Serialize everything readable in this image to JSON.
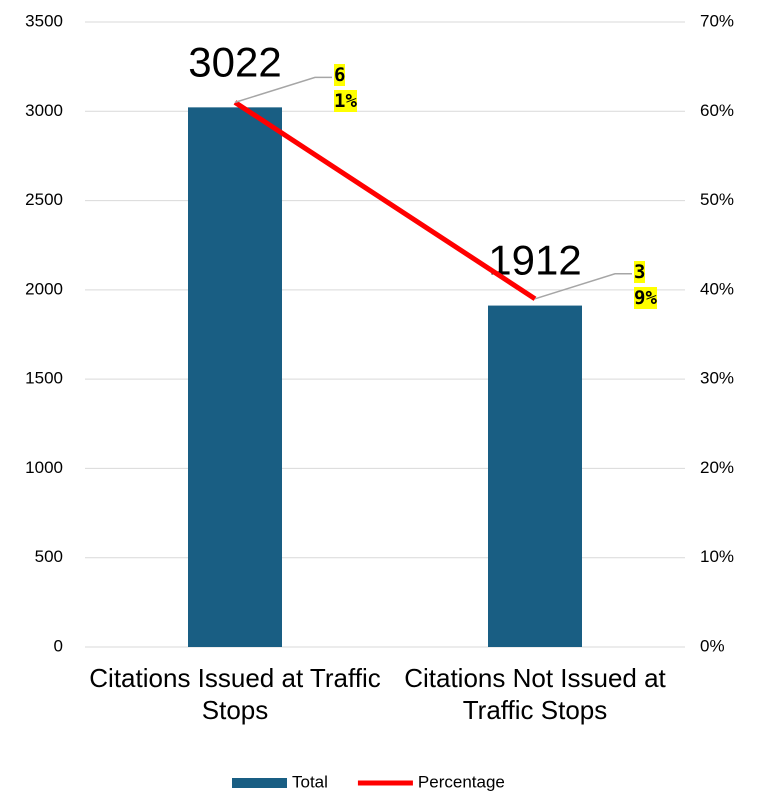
{
  "chart_data": {
    "type": "bar_line",
    "categories": [
      "Citations Issued at Traffic Stops",
      "Citations Not Issued at Traffic Stops"
    ],
    "series": [
      {
        "name": "Total",
        "type": "bar",
        "color": "#195e83",
        "values": [
          3022,
          1912
        ]
      },
      {
        "name": "Percentage",
        "type": "line",
        "axis": "y2",
        "color": "#ff0000",
        "values": [
          61,
          39
        ],
        "value_labels": [
          "61%",
          "39%"
        ]
      }
    ],
    "ylim": [
      0,
      3500
    ],
    "yticks": [
      0,
      500,
      1000,
      1500,
      2000,
      2500,
      3000,
      3500
    ],
    "y2lim": [
      0,
      70
    ],
    "y2ticks": [
      {
        "value": 0,
        "label": "0%"
      },
      {
        "value": 10,
        "label": "10%"
      },
      {
        "value": 20,
        "label": "20%"
      },
      {
        "value": 30,
        "label": "30%"
      },
      {
        "value": 40,
        "label": "40%"
      },
      {
        "value": 50,
        "label": "50%"
      },
      {
        "value": 60,
        "label": "60%"
      },
      {
        "value": 70,
        "label": "70%"
      }
    ],
    "grid": true,
    "legend": "bottom"
  }
}
